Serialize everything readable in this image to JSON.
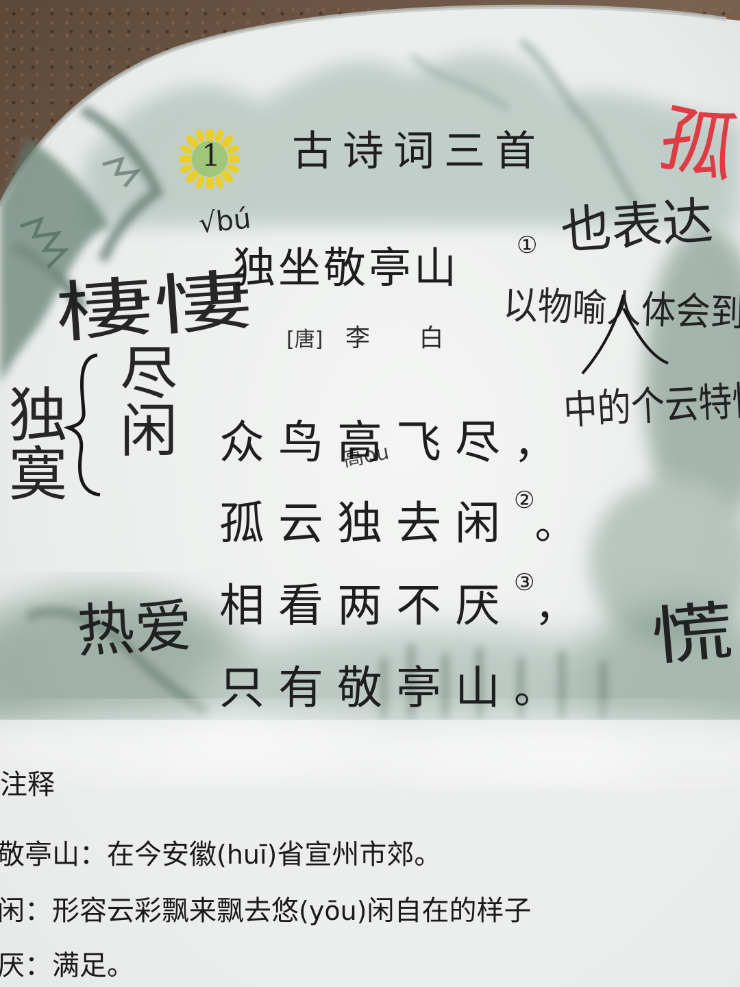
{
  "lesson": {
    "number": "1",
    "title": "古诗词三首"
  },
  "poem": {
    "title": "独坐敬亭山",
    "title_note": "①",
    "dynasty": "[唐]",
    "author": "李 白",
    "lines": [
      {
        "text": "众鸟高飞尽",
        "punct": "，",
        "note": ""
      },
      {
        "text": "孤云独去闲",
        "punct": "。",
        "note": "②"
      },
      {
        "text": "相看两不厌",
        "punct": "，",
        "note": "③"
      },
      {
        "text": "只有敬亭山",
        "punct": "。",
        "note": ""
      }
    ]
  },
  "notes": {
    "heading": "注释",
    "items": [
      {
        "term": "敬亭山：",
        "body_a": "在今安徽",
        "pinyin": "(huī)",
        "body_b": "省宣州市郊。"
      },
      {
        "term": "闲：",
        "body_a": "形容云彩飘来飘去悠",
        "pinyin": "(yōu)",
        "body_b": "闲自在的样子"
      },
      {
        "term": "厌：",
        "body_a": "满足。",
        "pinyin": "",
        "body_b": ""
      }
    ]
  },
  "annotations": {
    "pinyin_mark": "√bú",
    "left_title_note": "棲悽",
    "left_brace_col1": "独寞",
    "left_brace_col2": "尽闲",
    "left_lower": "热爱",
    "right_top_red": "孤",
    "right_top_a": "也表达",
    "right_top_b": "以物喻人体会到",
    "right_mid": "中的个云特快",
    "right_lower": "慌",
    "under_gao": "高ou"
  },
  "colors": {
    "ink": "#1e1e1e",
    "pencil": "#161616",
    "red_pen": "#e0303a",
    "page": "#eef0ee",
    "wash": "#8fa79c"
  }
}
